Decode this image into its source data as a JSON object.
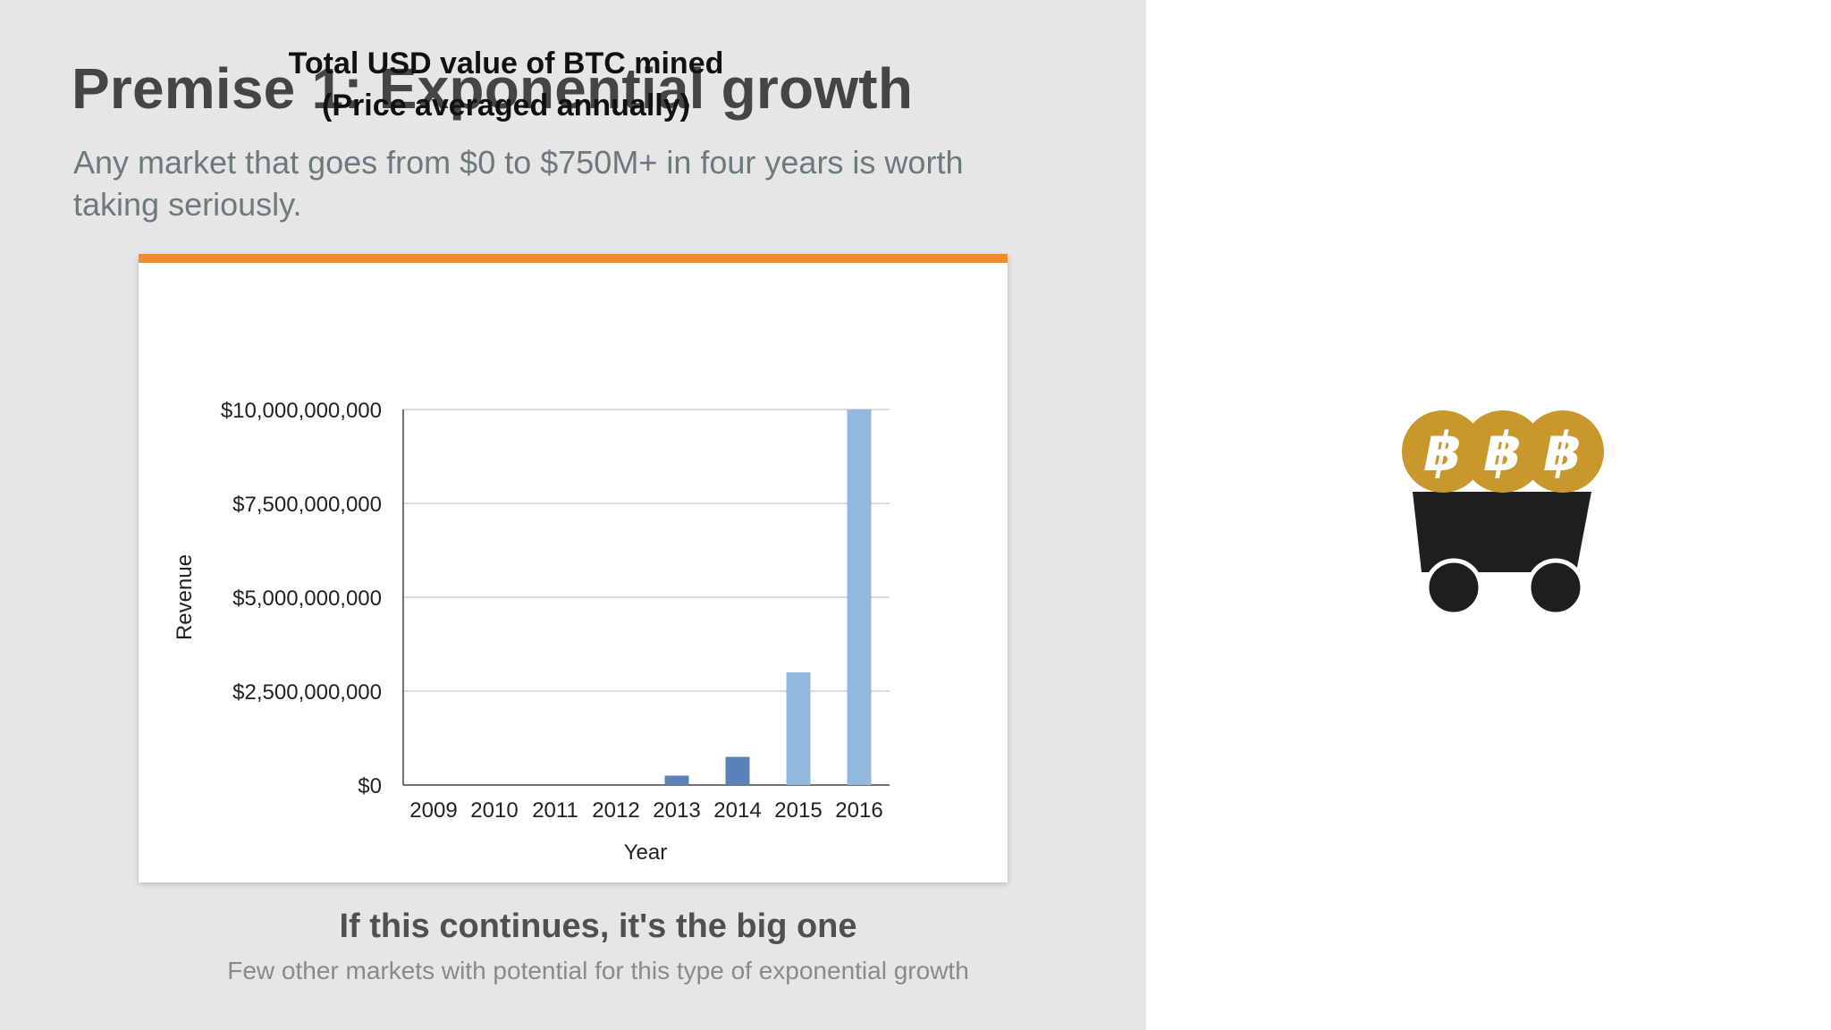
{
  "slide": {
    "title": "Premise 1: Exponential growth",
    "subtitle": "Any market that goes from $0 to $750M+ in four years is worth taking seriously.",
    "caption_title": "If this continues, it's the big one",
    "caption_subtitle": "Few other markets with potential for this type of exponential growth"
  },
  "chart_data": {
    "type": "bar",
    "title": "Total USD value of BTC mined",
    "subtitle": "(Price averaged annually)",
    "xlabel": "Year",
    "ylabel": "Revenue",
    "categories": [
      "2009",
      "2010",
      "2011",
      "2012",
      "2013",
      "2014",
      "2015",
      "2016"
    ],
    "values": [
      0,
      0,
      0,
      0,
      250000000,
      750000000,
      3000000000,
      10000000000
    ],
    "bar_colors": [
      "#5b82b8",
      "#5b82b8",
      "#5b82b8",
      "#5b82b8",
      "#5b82b8",
      "#5b82b8",
      "#93b8de",
      "#93b8de"
    ],
    "ylim": [
      0,
      10000000000
    ],
    "yticks": [
      0,
      2500000000,
      5000000000,
      7500000000,
      10000000000
    ],
    "ytick_labels": [
      "$0",
      "$2,500,000,000",
      "$5,000,000,000",
      "$7,500,000,000",
      "$10,000,000,000"
    ],
    "grid": true,
    "legend": "none",
    "accent_color": "#f28c28"
  },
  "illustration": {
    "icon": "bitcoin-mining-cart-icon",
    "coin_symbol": "฿",
    "coin_color": "#c9982c",
    "cart_color": "#1e1e1e"
  }
}
